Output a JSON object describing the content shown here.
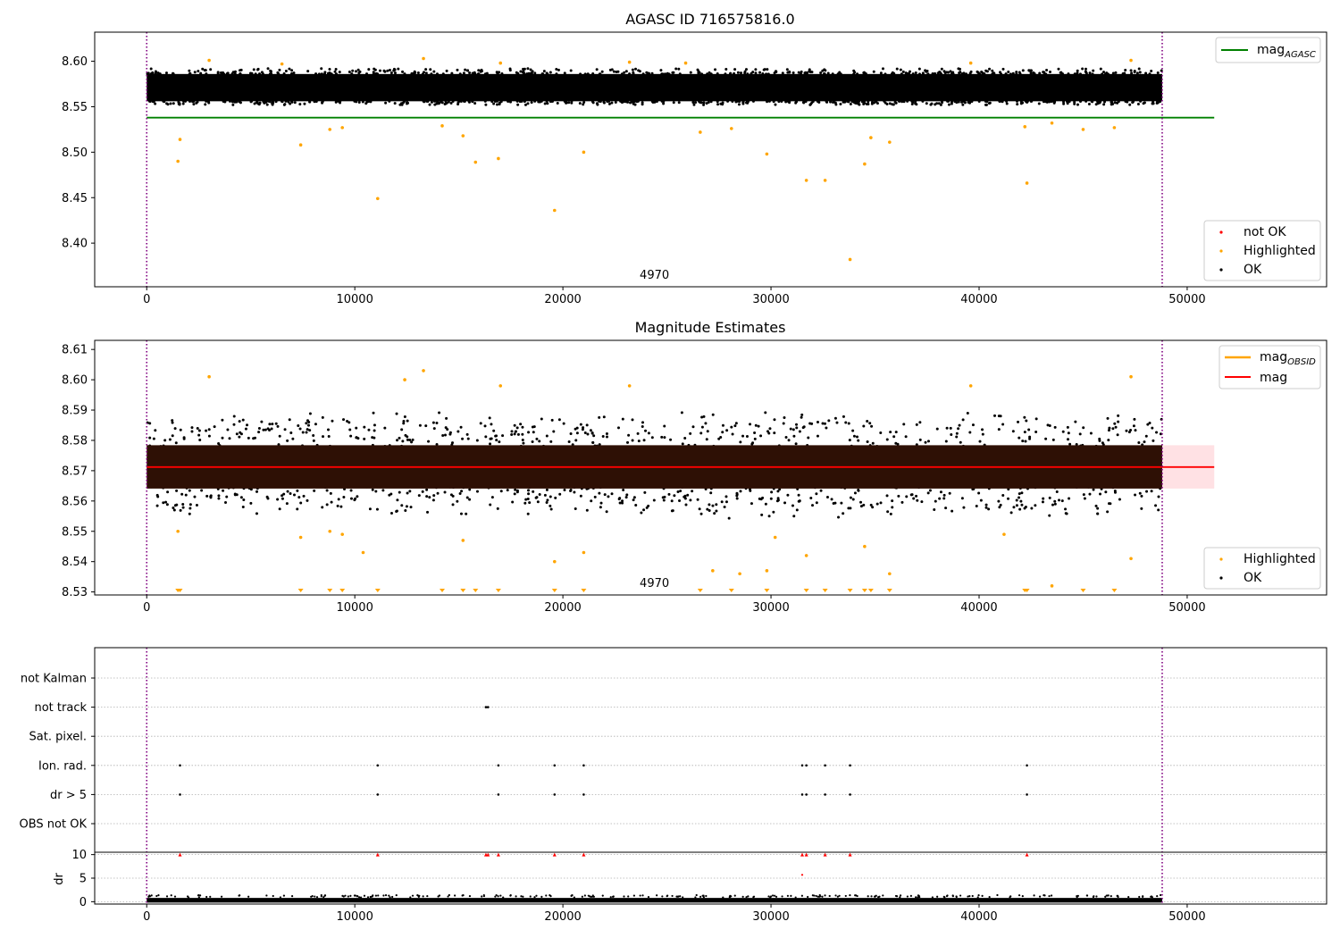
{
  "chart_data": [
    {
      "type": "scatter",
      "title": "AGASC ID 716575816.0",
      "xlim": [
        -2500,
        56700
      ],
      "ylim": [
        8.352,
        8.632
      ],
      "x_ticks": [
        0,
        10000,
        20000,
        30000,
        40000,
        50000
      ],
      "y_ticks": [
        8.4,
        8.45,
        8.5,
        8.55,
        8.6
      ],
      "obsid_boundaries": [
        0,
        48800
      ],
      "obsid_label": {
        "text": "4970",
        "x": 24400
      },
      "mag_agasc": {
        "value": 8.538,
        "x_range": [
          0,
          51300
        ]
      },
      "ok_band": {
        "x_range": [
          0,
          48800
        ],
        "y_low": 8.556,
        "y_high": 8.586,
        "count": 48800
      },
      "series": [
        {
          "name": "not OK",
          "color": "#ff0000",
          "points": []
        },
        {
          "name": "Highlighted",
          "color": "#ffa500",
          "points": [
            [
              1500,
              8.49
            ],
            [
              1600,
              8.514
            ],
            [
              7400,
              8.508
            ],
            [
              8800,
              8.525
            ],
            [
              9400,
              8.527
            ],
            [
              11100,
              8.449
            ],
            [
              14200,
              8.529
            ],
            [
              15200,
              8.518
            ],
            [
              15800,
              8.489
            ],
            [
              16900,
              8.493
            ],
            [
              19600,
              8.436
            ],
            [
              21000,
              8.5
            ],
            [
              26600,
              8.522
            ],
            [
              28100,
              8.526
            ],
            [
              29800,
              8.498
            ],
            [
              31700,
              8.469
            ],
            [
              32600,
              8.469
            ],
            [
              33800,
              8.382
            ],
            [
              34500,
              8.487
            ],
            [
              34800,
              8.516
            ],
            [
              35700,
              8.511
            ],
            [
              42200,
              8.528
            ],
            [
              42300,
              8.466
            ],
            [
              43500,
              8.532
            ],
            [
              45000,
              8.525
            ],
            [
              46500,
              8.527
            ],
            [
              3000,
              8.601
            ],
            [
              13300,
              8.603
            ],
            [
              47300,
              8.601
            ],
            [
              6500,
              8.597
            ],
            [
              17000,
              8.598
            ],
            [
              23200,
              8.599
            ],
            [
              25900,
              8.598
            ],
            [
              39600,
              8.598
            ]
          ]
        },
        {
          "name": "OK",
          "color": "#000000",
          "points": []
        }
      ],
      "legend_lines": [
        {
          "name": "mag",
          "subscript": "AGASC",
          "color": "#008000"
        }
      ]
    },
    {
      "type": "scatter",
      "title": "Magnitude Estimates",
      "xlim": [
        -2500,
        56700
      ],
      "ylim": [
        8.529,
        8.613
      ],
      "x_ticks": [
        0,
        10000,
        20000,
        30000,
        40000,
        50000
      ],
      "y_ticks": [
        8.53,
        8.54,
        8.55,
        8.56,
        8.57,
        8.58,
        8.59,
        8.6,
        8.61
      ],
      "obsid_boundaries": [
        0,
        48800
      ],
      "obsid_label": {
        "text": "4970",
        "x": 24400
      },
      "mag": {
        "value": 8.5712,
        "std_low": 8.5641,
        "std_high": 8.5784,
        "x_range": [
          0,
          51300
        ]
      },
      "ok_band": {
        "x_range": [
          0,
          48800
        ],
        "y_low": 8.557,
        "y_high": 8.587,
        "count": 48800
      },
      "series": [
        {
          "name": "Highlighted",
          "color": "#ffa500",
          "points": [
            [
              3000,
              8.601
            ],
            [
              13300,
              8.603
            ],
            [
              47300,
              8.601
            ],
            [
              12400,
              8.6
            ],
            [
              17000,
              8.598
            ],
            [
              39600,
              8.598
            ],
            [
              23200,
              8.598
            ],
            [
              1500,
              8.55
            ],
            [
              7400,
              8.548
            ],
            [
              8800,
              8.55
            ],
            [
              9400,
              8.549
            ],
            [
              10400,
              8.543
            ],
            [
              15200,
              8.547
            ],
            [
              19600,
              8.54
            ],
            [
              21000,
              8.543
            ],
            [
              31700,
              8.542
            ],
            [
              34500,
              8.545
            ],
            [
              35700,
              8.536
            ],
            [
              43500,
              8.532
            ],
            [
              47300,
              8.541
            ],
            [
              27200,
              8.537
            ],
            [
              28500,
              8.536
            ],
            [
              29800,
              8.537
            ],
            [
              30200,
              8.548
            ],
            [
              41200,
              8.549
            ]
          ]
        },
        {
          "name": "OK",
          "color": "#000000",
          "points": []
        }
      ],
      "out_of_range_markers_x": [
        1500,
        1600,
        7400,
        8800,
        9400,
        11100,
        14200,
        15200,
        15800,
        16900,
        19600,
        21000,
        26600,
        28100,
        29800,
        31700,
        32600,
        33800,
        34500,
        34800,
        35700,
        42200,
        42300,
        45000,
        46500
      ],
      "legend_lines": [
        {
          "name": "mag",
          "subscript": "OBSID",
          "color": "#ffa500"
        },
        {
          "name": "mag",
          "subscript": "",
          "color": "#ff0000"
        }
      ]
    },
    {
      "type": "scatter",
      "title": "",
      "xlim": [
        -2500,
        56700
      ],
      "x_ticks": [
        0,
        10000,
        20000,
        30000,
        40000,
        50000
      ],
      "obsid_boundaries": [
        0,
        48800
      ],
      "flag_categories": [
        "not Kalman",
        "not track",
        "Sat. pixel.",
        "Ion. rad.",
        "dr > 5",
        "OBS not OK"
      ],
      "flag_points": [
        {
          "category": "not track",
          "x": [
            16300,
            16400
          ]
        },
        {
          "category": "Ion. rad.",
          "x": [
            1600,
            11100,
            16900,
            19600,
            21000,
            31500,
            31700,
            32600,
            33800,
            42300
          ]
        },
        {
          "category": "dr > 5",
          "x": [
            1600,
            11100,
            16900,
            19600,
            21000,
            31500,
            31700,
            32600,
            33800,
            42300
          ]
        }
      ],
      "dr": {
        "ylabel": "dr",
        "ylim": [
          -0.5,
          10.5
        ],
        "y_ticks": [
          0,
          5,
          10
        ],
        "band": {
          "x_range": [
            0,
            48800
          ],
          "y_low": 0,
          "y_high": 0.8
        },
        "capped_markers": {
          "value": 10,
          "color": "#ff0000",
          "x": [
            1600,
            11100,
            16300,
            16400,
            16900,
            19600,
            21000,
            31500,
            31700,
            32600,
            33800,
            42300
          ]
        },
        "extra_points": [
          {
            "x": 31500,
            "y": 5.7,
            "color": "#ff0000"
          }
        ]
      }
    }
  ]
}
